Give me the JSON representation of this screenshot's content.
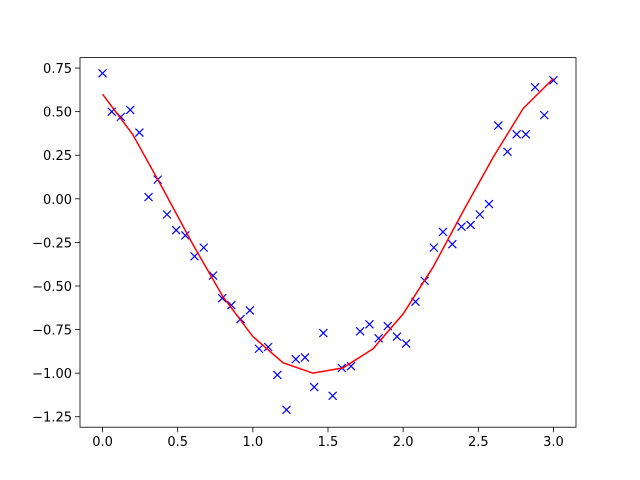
{
  "chart_data": {
    "type": "line",
    "xlim": [
      -0.15,
      3.15
    ],
    "ylim": [
      -1.31,
      0.81
    ],
    "xticks": [
      {
        "value": 0,
        "label": "0.0"
      },
      0.5,
      {
        "value": 1,
        "label": "1.0"
      },
      1.5,
      {
        "value": 2,
        "label": "2.0"
      },
      2.5,
      {
        "value": 3,
        "label": "3.0"
      }
    ],
    "yticks": [
      {
        "value": -1.25,
        "label": "−1.25"
      },
      {
        "value": -1,
        "label": "−1.00"
      },
      {
        "value": -0.75,
        "label": "−0.75"
      },
      {
        "value": -0.5,
        "label": "−0.50"
      },
      {
        "value": -0.25,
        "label": "−0.25"
      },
      {
        "value": 0,
        "label": "0.00"
      },
      0.25,
      {
        "value": 0.5,
        "label": "0.50"
      },
      0.75
    ],
    "series": [
      {
        "color": "#0000ff",
        "marker": "x",
        "linestyle": "none",
        "x": [
          0,
          0.061,
          0.122,
          0.184,
          0.245,
          0.306,
          0.367,
          0.429,
          0.49,
          0.551,
          0.612,
          0.673,
          0.735,
          0.796,
          0.857,
          0.918,
          0.98,
          1.041,
          1.102,
          1.163,
          1.224,
          1.286,
          1.347,
          1.408,
          1.469,
          1.531,
          1.592,
          1.653,
          1.714,
          1.776,
          1.837,
          1.898,
          1.959,
          2.02,
          2.082,
          2.143,
          2.204,
          2.265,
          2.327,
          2.388,
          2.449,
          2.51,
          2.571,
          2.633,
          2.694,
          2.755,
          2.816,
          2.878,
          2.939,
          3
        ],
        "values": [
          0.72,
          0.5,
          0.47,
          0.51,
          0.38,
          0.01,
          0.11,
          -0.09,
          -0.18,
          -0.21,
          -0.33,
          -0.28,
          -0.44,
          -0.57,
          -0.61,
          -0.69,
          -0.64,
          -0.86,
          -0.85,
          -1.01,
          -1.21,
          -0.92,
          -0.91,
          -1.08,
          -0.77,
          -1.13,
          -0.97,
          -0.96,
          -0.76,
          -0.72,
          -0.8,
          -0.73,
          -0.79,
          -0.83,
          -0.59,
          -0.47,
          -0.28,
          -0.19,
          -0.26,
          -0.16,
          -0.15,
          -0.09,
          -0.03,
          0.42,
          0.27,
          0.37,
          0.37,
          0.64,
          0.48,
          0.68
        ]
      },
      {
        "color": "#ff0000",
        "marker": "none",
        "linestyle": "solid",
        "x": [
          0,
          0.2,
          0.4,
          0.6,
          0.8,
          1,
          1.2,
          1.4,
          1.6,
          1.8,
          2,
          2.2,
          2.4,
          2.6,
          2.8,
          3
        ],
        "values": [
          0.6,
          0.37,
          0.06,
          -0.26,
          -0.56,
          -0.79,
          -0.94,
          -1.0,
          -0.97,
          -0.86,
          -0.66,
          -0.39,
          -0.07,
          0.24,
          0.52,
          0.69
        ]
      }
    ]
  }
}
